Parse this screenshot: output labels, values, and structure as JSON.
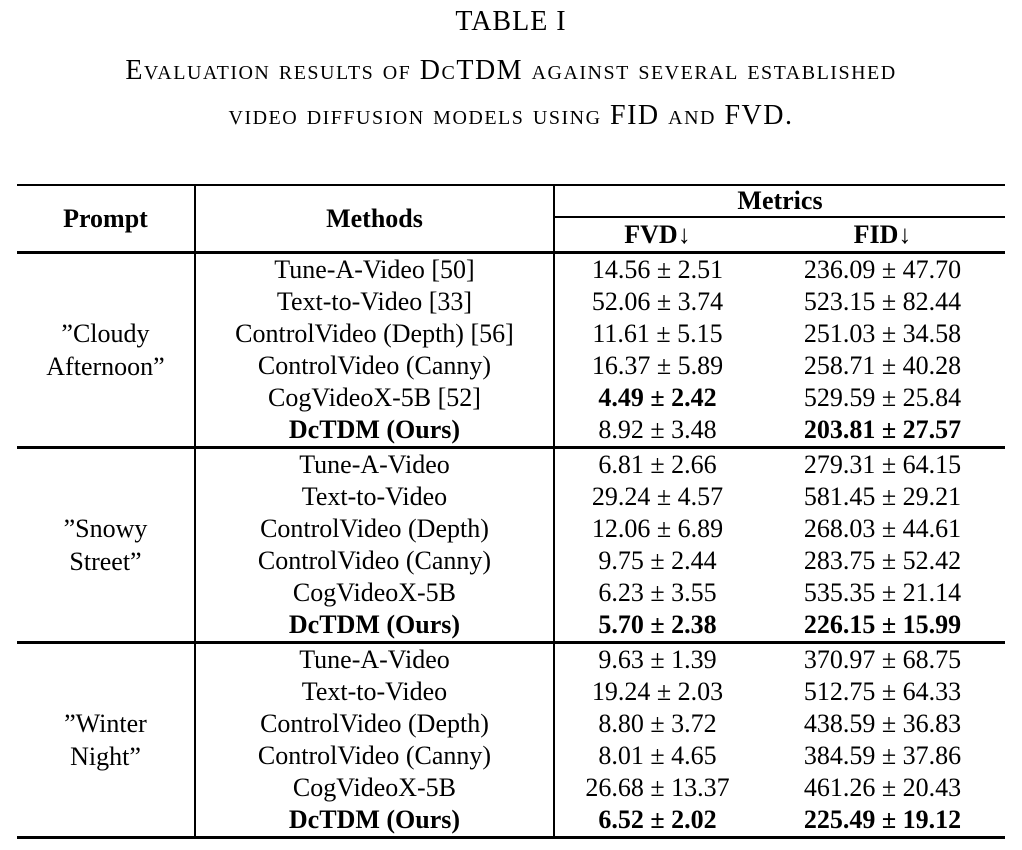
{
  "page": {
    "title": "TABLE I",
    "caption_line1": "Evaluation results of DcTDM against several established",
    "caption_line2": "video diffusion models using FID and FVD."
  },
  "table": {
    "headers": {
      "prompt": "Prompt",
      "methods": "Methods",
      "metrics": "Metrics",
      "fvd": "FVD↓",
      "fid": "FID↓"
    },
    "groups": [
      {
        "prompt_line1": "”Cloudy",
        "prompt_line2": "Afternoon”",
        "rows": [
          {
            "method": "Tune-A-Video [50]",
            "fvd": "14.56 ± 2.51",
            "fid": "236.09 ± 47.70",
            "method_bold": false,
            "fvd_bold": false,
            "fid_bold": false
          },
          {
            "method": "Text-to-Video [33]",
            "fvd": "52.06 ± 3.74",
            "fid": "523.15 ± 82.44",
            "method_bold": false,
            "fvd_bold": false,
            "fid_bold": false
          },
          {
            "method": "ControlVideo (Depth) [56]",
            "fvd": "11.61 ± 5.15",
            "fid": "251.03 ± 34.58",
            "method_bold": false,
            "fvd_bold": false,
            "fid_bold": false
          },
          {
            "method": "ControlVideo (Canny)",
            "fvd": "16.37 ± 5.89",
            "fid": "258.71 ± 40.28",
            "method_bold": false,
            "fvd_bold": false,
            "fid_bold": false
          },
          {
            "method": "CogVideoX-5B [52]",
            "fvd": "4.49 ± 2.42",
            "fid": "529.59 ± 25.84",
            "method_bold": false,
            "fvd_bold": true,
            "fid_bold": false
          },
          {
            "method": "DcTDM (Ours)",
            "fvd": "8.92 ± 3.48",
            "fid": "203.81 ± 27.57",
            "method_bold": true,
            "fvd_bold": false,
            "fid_bold": true
          }
        ]
      },
      {
        "prompt_line1": "”Snowy",
        "prompt_line2": "Street”",
        "rows": [
          {
            "method": "Tune-A-Video",
            "fvd": "6.81 ± 2.66",
            "fid": "279.31 ± 64.15",
            "method_bold": false,
            "fvd_bold": false,
            "fid_bold": false
          },
          {
            "method": "Text-to-Video",
            "fvd": "29.24 ± 4.57",
            "fid": "581.45 ± 29.21",
            "method_bold": false,
            "fvd_bold": false,
            "fid_bold": false
          },
          {
            "method": "ControlVideo (Depth)",
            "fvd": "12.06 ± 6.89",
            "fid": "268.03 ± 44.61",
            "method_bold": false,
            "fvd_bold": false,
            "fid_bold": false
          },
          {
            "method": "ControlVideo (Canny)",
            "fvd": "9.75 ± 2.44",
            "fid": "283.75 ± 52.42",
            "method_bold": false,
            "fvd_bold": false,
            "fid_bold": false
          },
          {
            "method": "CogVideoX-5B",
            "fvd": "6.23 ± 3.55",
            "fid": "535.35 ± 21.14",
            "method_bold": false,
            "fvd_bold": false,
            "fid_bold": false
          },
          {
            "method": "DcTDM (Ours)",
            "fvd": "5.70 ± 2.38",
            "fid": "226.15 ± 15.99",
            "method_bold": true,
            "fvd_bold": true,
            "fid_bold": true
          }
        ]
      },
      {
        "prompt_line1": "”Winter",
        "prompt_line2": "Night”",
        "rows": [
          {
            "method": "Tune-A-Video",
            "fvd": "9.63 ± 1.39",
            "fid": "370.97 ± 68.75",
            "method_bold": false,
            "fvd_bold": false,
            "fid_bold": false
          },
          {
            "method": "Text-to-Video",
            "fvd": "19.24 ± 2.03",
            "fid": "512.75 ± 64.33",
            "method_bold": false,
            "fvd_bold": false,
            "fid_bold": false
          },
          {
            "method": "ControlVideo (Depth)",
            "fvd": "8.80 ± 3.72",
            "fid": "438.59 ± 36.83",
            "method_bold": false,
            "fvd_bold": false,
            "fid_bold": false
          },
          {
            "method": "ControlVideo (Canny)",
            "fvd": "8.01 ± 4.65",
            "fid": "384.59 ± 37.86",
            "method_bold": false,
            "fvd_bold": false,
            "fid_bold": false
          },
          {
            "method": "CogVideoX-5B",
            "fvd": "26.68 ± 13.37",
            "fid": "461.26 ± 20.43",
            "method_bold": false,
            "fvd_bold": false,
            "fid_bold": false
          },
          {
            "method": "DcTDM (Ours)",
            "fvd": "6.52 ± 2.02",
            "fid": "225.49 ± 19.12",
            "method_bold": true,
            "fvd_bold": true,
            "fid_bold": true
          }
        ]
      }
    ]
  }
}
